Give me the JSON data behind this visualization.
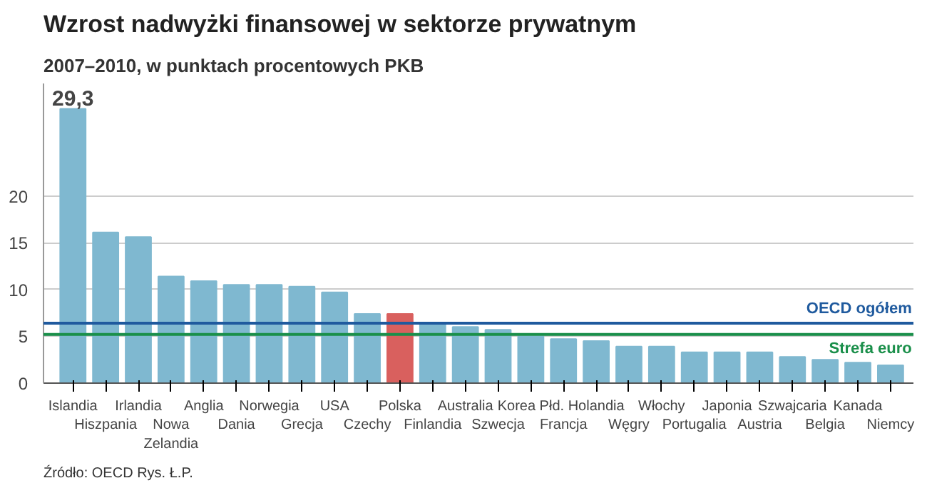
{
  "chart_data": {
    "type": "bar",
    "title": "Wzrost nadwyżki finansowej w sektorze prywatnym",
    "subtitle": "2007–2010, w punktach procentowych PKB",
    "categories": [
      "Islandia",
      "Hiszpania",
      "Irlandia",
      "Nowa Zelandia",
      "Anglia",
      "Dania",
      "Norwegia",
      "Grecja",
      "USA",
      "Czechy",
      "Polska",
      "Finlandia",
      "Australia",
      "Szwecja",
      "Korea Płd.",
      "Francja",
      "Holandia",
      "Węgry",
      "Włochy",
      "Portugalia",
      "Japonia",
      "Austria",
      "Szwajcaria",
      "Belgia",
      "Kanada",
      "Niemcy"
    ],
    "values": [
      29.3,
      16.1,
      15.6,
      11.4,
      10.9,
      10.5,
      10.5,
      10.3,
      9.7,
      7.4,
      7.4,
      6.4,
      6.0,
      5.7,
      5.0,
      4.7,
      4.5,
      3.9,
      3.9,
      3.3,
      3.3,
      3.3,
      2.8,
      2.5,
      2.2,
      1.9
    ],
    "colors": [
      "#7fb8d0",
      "#7fb8d0",
      "#7fb8d0",
      "#7fb8d0",
      "#7fb8d0",
      "#7fb8d0",
      "#7fb8d0",
      "#7fb8d0",
      "#7fb8d0",
      "#7fb8d0",
      "#d9605e",
      "#7fb8d0",
      "#7fb8d0",
      "#7fb8d0",
      "#7fb8d0",
      "#7fb8d0",
      "#7fb8d0",
      "#7fb8d0",
      "#7fb8d0",
      "#7fb8d0",
      "#7fb8d0",
      "#7fb8d0",
      "#7fb8d0",
      "#7fb8d0",
      "#7fb8d0",
      "#7fb8d0"
    ],
    "value_labels": [
      "29,3",
      null,
      null,
      null,
      null,
      null,
      null,
      null,
      null,
      null,
      null,
      null,
      null,
      null,
      null,
      null,
      null,
      null,
      null,
      null,
      null,
      null,
      null,
      null,
      null,
      null
    ],
    "ylim": [
      0,
      32
    ],
    "yticks": [
      0,
      5,
      10,
      15,
      20
    ],
    "grid": "y",
    "ref_lines": [
      {
        "axis": "y",
        "value": 6.4,
        "label": "OECD ogółem",
        "color": "#1f5a9e"
      },
      {
        "axis": "y",
        "value": 5.2,
        "label": "Strefa euro",
        "color": "#1a8f4a"
      }
    ],
    "annotations": [
      "Źródło: OECD",
      "Rys. Ł.P."
    ]
  }
}
